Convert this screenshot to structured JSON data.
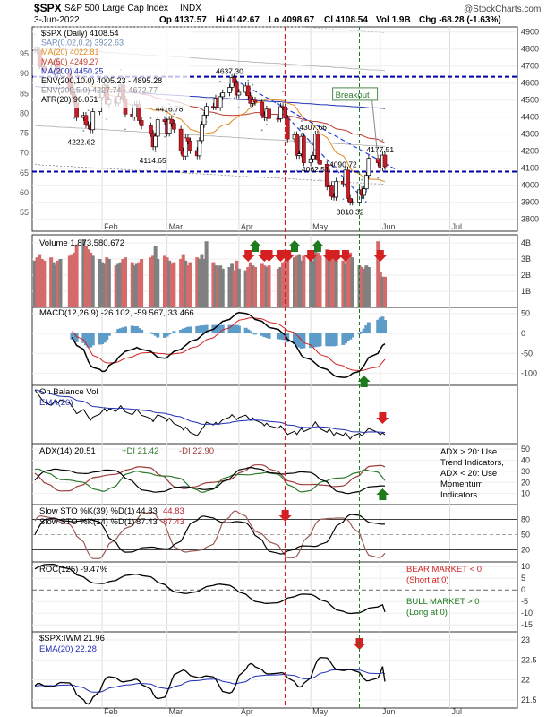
{
  "chart_data": {
    "type": "stock-dashboard",
    "header": {
      "symbol": "$SPX",
      "name": "S&P 500 Large Cap Index",
      "exchange": "INDX",
      "date": "3-Jun-2022",
      "open": "Op 4137.57",
      "high": "Hi 4142.67",
      "low": "Lo 4098.67",
      "close": "Cl 4108.54",
      "volume": "Vol 1.9B",
      "change": "Chg -68.28 (-1.63%)",
      "watermark": "@StockCharts.com"
    },
    "months": [
      "Feb",
      "Mar",
      "Apr",
      "May",
      "Jun",
      "Jul"
    ],
    "dates": [
      "2022-01-03",
      "2022-01-04",
      "2022-01-05",
      "2022-01-06",
      "2022-01-07",
      "2022-01-10",
      "2022-01-11",
      "2022-01-12",
      "2022-01-13",
      "2022-01-14",
      "2022-01-18",
      "2022-01-19",
      "2022-01-20",
      "2022-01-21",
      "2022-01-24",
      "2022-01-25",
      "2022-01-26",
      "2022-01-27",
      "2022-01-28",
      "2022-01-31",
      "2022-02-01",
      "2022-02-02",
      "2022-02-03",
      "2022-02-04",
      "2022-02-07",
      "2022-02-08",
      "2022-02-09",
      "2022-02-10",
      "2022-02-11",
      "2022-02-14",
      "2022-02-15",
      "2022-02-16",
      "2022-02-17",
      "2022-02-18",
      "2022-02-22",
      "2022-02-23",
      "2022-02-24",
      "2022-02-25",
      "2022-02-28",
      "2022-03-01",
      "2022-03-02",
      "2022-03-03",
      "2022-03-04",
      "2022-03-07",
      "2022-03-08",
      "2022-03-09",
      "2022-03-10",
      "2022-03-11",
      "2022-03-14",
      "2022-03-15",
      "2022-03-16",
      "2022-03-17",
      "2022-03-18",
      "2022-03-21",
      "2022-03-22",
      "2022-03-23",
      "2022-03-24",
      "2022-03-25",
      "2022-03-28",
      "2022-03-29",
      "2022-03-30",
      "2022-03-31",
      "2022-04-01",
      "2022-04-04",
      "2022-04-05",
      "2022-04-06",
      "2022-04-07",
      "2022-04-08",
      "2022-04-11",
      "2022-04-12",
      "2022-04-13",
      "2022-04-14",
      "2022-04-18",
      "2022-04-19",
      "2022-04-20",
      "2022-04-21",
      "2022-04-22",
      "2022-04-25",
      "2022-04-26",
      "2022-04-27",
      "2022-04-28",
      "2022-04-29",
      "2022-05-02",
      "2022-05-03",
      "2022-05-04",
      "2022-05-05",
      "2022-05-06",
      "2022-05-09",
      "2022-05-10",
      "2022-05-11",
      "2022-05-12",
      "2022-05-13",
      "2022-05-16",
      "2022-05-17",
      "2022-05-18",
      "2022-05-19",
      "2022-05-20",
      "2022-05-23",
      "2022-05-24",
      "2022-05-25",
      "2022-05-26",
      "2022-05-27",
      "2022-05-31",
      "2022-06-01",
      "2022-06-02",
      "2022-06-03"
    ],
    "x_range": [
      "2022-01-03",
      "2022-07-29"
    ],
    "price": {
      "legend": [
        {
          "text": "$SPX (Daily) 4108.54",
          "color": "#000000"
        },
        {
          "text": "SAR(0.02,0.2) 3922.63",
          "color": "#6e8bb3"
        },
        {
          "text": "MA(20) 4022.81",
          "color": "#e08a1e"
        },
        {
          "text": "MA(50) 4249.27",
          "color": "#c0392b"
        },
        {
          "text": "MA(200) 4450.25",
          "color": "#1f2fb5"
        },
        {
          "text": "ENV(200,10.0) 4005.23 - 4895.28",
          "color": "#000000"
        },
        {
          "text": "ENV(200,5.0) 4227.74 - 4672.77",
          "color": "#888888"
        },
        {
          "text": "ATR(20) 96.051",
          "color": "#000000"
        }
      ],
      "right_ticks": [
        3800,
        3900,
        4000,
        4100,
        4200,
        4300,
        4400,
        4500,
        4600,
        4700,
        4800,
        4900
      ],
      "left_ticks": [
        55,
        60,
        65,
        70,
        75,
        80,
        85,
        90,
        95
      ],
      "ylim": [
        3730,
        4930
      ],
      "close": [
        4796,
        4793,
        4700,
        4696,
        4677,
        4670,
        4713,
        4726,
        4659,
        4662,
        4577,
        4532,
        4483,
        4398,
        4410,
        4356,
        4350,
        4326,
        4432,
        4516,
        4546,
        4589,
        4477,
        4500,
        4483,
        4521,
        4587,
        4504,
        4418,
        4401,
        4472,
        4475,
        4380,
        4349,
        4304,
        4226,
        4288,
        4385,
        4374,
        4306,
        4387,
        4363,
        4329,
        4201,
        4171,
        4278,
        4260,
        4204,
        4173,
        4262,
        4357,
        4412,
        4463,
        4461,
        4512,
        4456,
        4520,
        4543,
        4575,
        4632,
        4602,
        4530,
        4546,
        4583,
        4526,
        4481,
        4500,
        4488,
        4413,
        4397,
        4447,
        4392,
        4391,
        4462,
        4460,
        4394,
        4272,
        4296,
        4175,
        4184,
        4287,
        4132,
        4155,
        4175,
        4300,
        4147,
        4123,
        3991,
        4001,
        3935,
        3930,
        4023,
        4008,
        4089,
        3923,
        3901,
        3901,
        3973,
        3941,
        3979,
        4058,
        4158,
        4132,
        4101,
        4177,
        4109
      ],
      "ohlc_last": {
        "open": 4137.57,
        "high": 4142.67,
        "low": 4098.67,
        "close": 4108.54
      },
      "envelope_200_10": [
        4005.23,
        4895.28
      ],
      "envelope_200_5": [
        4227.74,
        4672.77
      ],
      "ma200_last": 4450.25,
      "ma50_last": 4249.27,
      "ma20_last": 4022.81,
      "sar_last": 3922.63,
      "support_level": 4080,
      "resistance_level": 4637.3,
      "labels": [
        {
          "text": "4637.30",
          "date": "2022-03-29",
          "value": 4637.3
        },
        {
          "text": "4416.78",
          "date": "2022-03-03",
          "value": 4416.78
        },
        {
          "text": "4222.62",
          "date": "2022-01-24",
          "value": 4222.62
        },
        {
          "text": "4114.65",
          "date": "2022-02-24",
          "value": 4114.65
        },
        {
          "text": "4307.66",
          "date": "2022-05-04",
          "value": 4307.66
        },
        {
          "text": "4090.72",
          "date": "2022-05-17",
          "value": 4090.72
        },
        {
          "text": "4062.51",
          "date": "2022-05-05",
          "value": 4062.51
        },
        {
          "text": "3810.32",
          "date": "2022-05-20",
          "value": 3810.32
        },
        {
          "text": "4177.51",
          "date": "2022-06-02",
          "value": 4177.51
        }
      ],
      "breakout_label": "Breakout",
      "trendline_upper": [
        [
          "2022-03-30",
          4620
        ],
        [
          "2022-06-08",
          4090
        ]
      ],
      "trendline_lower": [
        [
          "2022-04-22",
          4400
        ],
        [
          "2022-05-26",
          3900
        ]
      ]
    },
    "volume": {
      "label": "Volume 1,873,580,672",
      "ticks": [
        "1B",
        "2B",
        "3B",
        "4B"
      ],
      "tick_values": [
        1,
        2,
        3,
        4
      ],
      "ylim": [
        0,
        4.5
      ],
      "values_billions": [
        2.9,
        3.1,
        3.3,
        3.0,
        2.9,
        3.1,
        2.8,
        2.6,
        2.9,
        3.0,
        3.2,
        3.3,
        3.4,
        3.9,
        4.2,
        3.8,
        3.6,
        3.4,
        3.2,
        3.0,
        2.8,
        2.7,
        3.1,
        3.0,
        2.6,
        2.7,
        2.8,
        3.0,
        3.1,
        2.8,
        2.6,
        2.7,
        2.8,
        3.0,
        3.1,
        3.2,
        3.8,
        3.0,
        3.2,
        3.1,
        2.9,
        2.7,
        2.8,
        3.0,
        3.3,
        2.9,
        2.6,
        2.8,
        3.1,
        3.0,
        3.3,
        3.0,
        4.1,
        2.8,
        2.6,
        2.5,
        2.6,
        2.4,
        2.5,
        2.7,
        2.3,
        2.9,
        2.4,
        2.3,
        2.5,
        2.8,
        2.6,
        2.5,
        2.7,
        2.6,
        2.5,
        2.6,
        2.4,
        2.5,
        2.8,
        2.9,
        3.0,
        3.1,
        3.2,
        3.3,
        2.9,
        3.2,
        3.1,
        2.9,
        3.5,
        3.4,
        3.2,
        3.6,
        3.3,
        3.1,
        3.4,
        2.9,
        2.9,
        2.7,
        3.0,
        3.4,
        3.1,
        2.6,
        2.5,
        2.4,
        2.6,
        2.5,
        4.1,
        2.2,
        1.9,
        1.9
      ],
      "up_color": "#808080",
      "down_color": "#d46a6a"
    },
    "macd": {
      "label": "MACD(12,26,9) -26.102, -59.567, 33.466",
      "ticks": [
        50,
        0,
        -50,
        -100
      ],
      "ylim": [
        -130,
        65
      ],
      "line": [
        -10,
        -20,
        -30,
        -40,
        -55,
        -70,
        -80,
        -85,
        -90,
        -95,
        -95,
        -90,
        -80,
        -70,
        -60,
        -55,
        -50,
        -45,
        -40,
        -38,
        -35,
        -38,
        -40,
        -45,
        -50,
        -55,
        -60,
        -62,
        -60,
        -55,
        -50,
        -45,
        -40,
        -35,
        -30,
        -25,
        -20,
        -15,
        -10,
        -5,
        0,
        5,
        10,
        15,
        20,
        25,
        30,
        35,
        40,
        45,
        50,
        52,
        50,
        48,
        45,
        40,
        35,
        30,
        25,
        20,
        15,
        10,
        5,
        0,
        -5,
        -15,
        -25,
        -35,
        -45,
        -55,
        -60,
        -65,
        -70,
        -75,
        -80,
        -85,
        -90,
        -95,
        -100,
        -105,
        -108,
        -110,
        -110,
        -108,
        -105,
        -100,
        -95,
        -88,
        -80,
        -70,
        -60,
        -50,
        -40,
        -30,
        -26.1
      ],
      "signal": [
        5,
        0,
        -8,
        -16,
        -25,
        -35,
        -45,
        -55,
        -62,
        -68,
        -72,
        -74,
        -74,
        -73,
        -71,
        -68,
        -65,
        -62,
        -59,
        -56,
        -53,
        -51,
        -49,
        -48,
        -48,
        -49,
        -50,
        -51,
        -52,
        -52,
        -52,
        -51,
        -49,
        -47,
        -44,
        -41,
        -37,
        -33,
        -29,
        -25,
        -20,
        -16,
        -11,
        -6,
        -1,
        4,
        9,
        14,
        19,
        24,
        29,
        33,
        36,
        38,
        39,
        39,
        38,
        36,
        34,
        31,
        28,
        24,
        20,
        16,
        12,
        7,
        2,
        -4,
        -10,
        -17,
        -23,
        -29,
        -35,
        -41,
        -47,
        -53,
        -58,
        -63,
        -68,
        -73,
        -77,
        -81,
        -85,
        -88,
        -90,
        -92,
        -93,
        -93,
        -92,
        -90,
        -88,
        -84,
        -79,
        -72,
        -65,
        -59.6
      ],
      "histogram": [
        -15,
        -20,
        -22,
        -24,
        -30,
        -35,
        -35,
        -30,
        -28,
        -27,
        -23,
        -16,
        -6,
        3,
        11,
        13,
        15,
        17,
        19,
        18,
        18,
        13,
        9,
        3,
        -2,
        -6,
        -10,
        -11,
        -8,
        -3,
        2,
        6,
        9,
        12,
        14,
        16,
        17,
        18,
        19,
        20,
        20,
        21,
        21,
        21,
        21,
        21,
        21,
        21,
        21,
        21,
        21,
        19,
        14,
        10,
        6,
        1,
        -3,
        -6,
        -9,
        -11,
        -13,
        -14,
        -15,
        -16,
        -17,
        -22,
        -27,
        -31,
        -35,
        -38,
        -37,
        -36,
        -35,
        -34,
        -33,
        -32,
        -32,
        -32,
        -32,
        -32,
        -31,
        -29,
        -25,
        -20,
        -15,
        -10,
        -2,
        5,
        12,
        20,
        28,
        34,
        39,
        42,
        33.5
      ],
      "line_color": "#000000",
      "signal_color": "#d42020",
      "hist_color": "#5d9cc9",
      "buy_arrow_date": "2022-05-25"
    },
    "obv": {
      "label": "On Balance Vol",
      "ema_label": "EMA(20)",
      "ylim": [
        -4,
        4
      ],
      "sell_arrow_date": "2022-06-02"
    },
    "adx": {
      "label": "ADX(14) 20.51",
      "plus_di": "+DI 21.42",
      "minus_di": "-DI 22.90",
      "ticks": [
        50,
        40,
        30,
        20,
        10
      ],
      "ylim": [
        0,
        55
      ],
      "notes": [
        "ADX > 20: Use",
        "Trend Indicators,",
        "ADX < 20: Use",
        "Momentum",
        "Indicators"
      ],
      "buy_arrow_date": "2022-06-02"
    },
    "stochastic": {
      "label_slow": "Slow STO %K(39) %D(1)",
      "slow_k": "44.83",
      "slow_d": "44.83",
      "label_fast": "Slow STO %K(14) %D(1)",
      "fast_k": "87.43",
      "fast_d": "87.43",
      "ticks": [
        80,
        50,
        20
      ],
      "ylim": [
        0,
        100
      ],
      "sell_arrow_date": "2022-04-21"
    },
    "roc": {
      "label": "ROC(125) -9.47%",
      "ticks": [
        10,
        5,
        0,
        -5,
        -10,
        -15
      ],
      "ylim": [
        -18,
        12
      ],
      "bear_note": [
        "BEAR MARKET < 0",
        "(Short at 0)"
      ],
      "bull_note": [
        "BULL MARKET > 0",
        "(Long at 0)"
      ]
    },
    "ratio": {
      "label": "$SPX:IWM 21.96",
      "ema_label": "EMA(20) 22.28",
      "ticks": [
        23.0,
        22.5,
        22.0,
        21.5
      ],
      "ylim": [
        21.3,
        23.2
      ],
      "sell_arrow_date": "2022-05-23"
    },
    "vertical_markers": {
      "red_dashed_date": "2022-04-21",
      "green_dashed_date": "2022-05-23"
    }
  }
}
